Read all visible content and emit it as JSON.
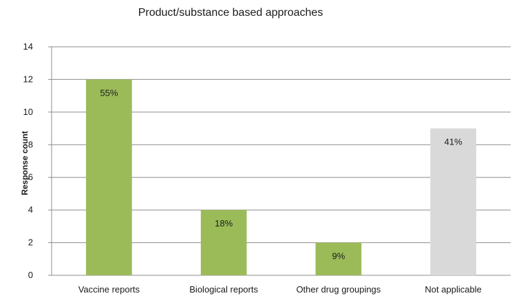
{
  "chart_data": {
    "type": "bar",
    "title": "Product/substance based approaches",
    "xlabel": "",
    "ylabel": "Response count",
    "categories": [
      "Vaccine reports",
      "Biological reports",
      "Other drug groupings",
      "Not applicable"
    ],
    "values": [
      12,
      4,
      2,
      9
    ],
    "data_labels": [
      "55%",
      "18%",
      "9%",
      "41%"
    ],
    "bar_colors": [
      "#9bbb59",
      "#9bbb59",
      "#9bbb59",
      "#d9d9d9"
    ],
    "ylim": [
      0,
      14
    ],
    "yticks": [
      0,
      2,
      4,
      6,
      8,
      10,
      12,
      14
    ],
    "grid": true,
    "legend": "none"
  }
}
